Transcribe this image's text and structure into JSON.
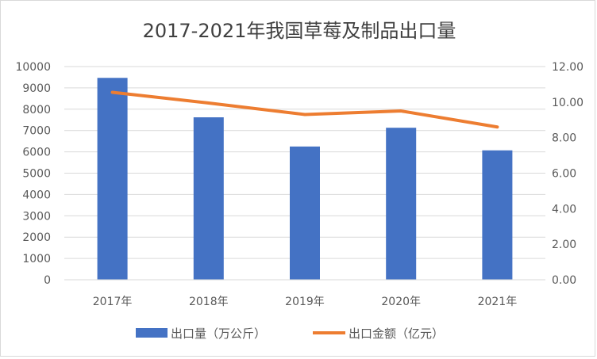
{
  "chart_data": {
    "type": "bar",
    "title": "2017-2021年我国草莓及制品出口量",
    "categories": [
      "2017年",
      "2018年",
      "2019年",
      "2020年",
      "2021年"
    ],
    "series": [
      {
        "name": "出口量（万公斤）",
        "type": "bar",
        "axis": "left",
        "color": "#4472c4",
        "values": [
          9470,
          7620,
          6250,
          7130,
          6070
        ]
      },
      {
        "name": "出口金额（亿元）",
        "type": "line",
        "axis": "right",
        "color": "#ed7d31",
        "values": [
          10.55,
          9.95,
          9.3,
          9.5,
          8.6
        ]
      }
    ],
    "y_left": {
      "min": 0,
      "max": 10000,
      "ticks": [
        "0",
        "1000",
        "2000",
        "3000",
        "4000",
        "5000",
        "6000",
        "7000",
        "8000",
        "9000",
        "10000"
      ]
    },
    "y_right": {
      "min": 0,
      "max": 12,
      "ticks": [
        "0.00",
        "2.00",
        "4.00",
        "6.00",
        "8.00",
        "10.00",
        "12.00"
      ]
    },
    "grid": true,
    "legend": "bottom"
  }
}
